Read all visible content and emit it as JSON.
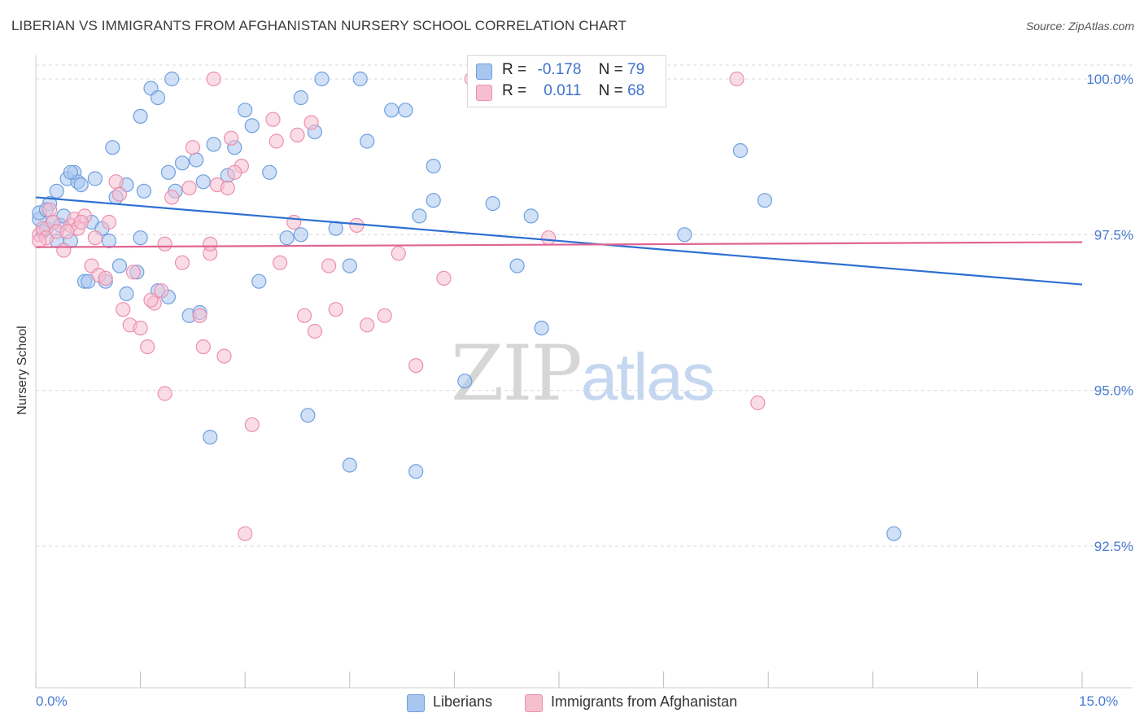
{
  "header": {
    "title": "LIBERIAN VS IMMIGRANTS FROM AFGHANISTAN NURSERY SCHOOL CORRELATION CHART",
    "source": "Source: ZipAtlas.com"
  },
  "legend": {
    "liberians": {
      "r_label": "R =",
      "r_value": "-0.178",
      "n_label": "N =",
      "n_value": "79"
    },
    "afghanistan": {
      "r_label": "R =",
      "r_value": "0.011",
      "n_label": "N =",
      "n_value": "68"
    }
  },
  "bottom_legend": {
    "liberians": "Liberians",
    "afghanistan": "Immigrants from Afghanistan"
  },
  "watermark": {
    "zip": "ZIP",
    "atlas": "atlas"
  },
  "colors": {
    "blue_fill": "#a9c6ef",
    "blue_stroke": "#6f9fe0",
    "blue_line": "#2e6fd0",
    "pink_fill": "#f6bfd0",
    "pink_stroke": "#ec8fae",
    "pink_line": "#e06592",
    "tick_label": "#4a7bd0",
    "grid": "#d9d9d9"
  },
  "chart_data": {
    "type": "scatter",
    "title": "LIBERIAN VS IMMIGRANTS FROM AFGHANISTAN NURSERY SCHOOL CORRELATION CHART",
    "xlabel": "",
    "ylabel": "Nursery School",
    "xlim": [
      0,
      15
    ],
    "ylim": [
      90.5,
      100.3
    ],
    "x_tick_labels": [
      "0.0%",
      "15.0%"
    ],
    "y_ticks": [
      {
        "value": 100.0,
        "label": "100.0%"
      },
      {
        "value": 97.5,
        "label": "97.5%"
      },
      {
        "value": 95.0,
        "label": "95.0%"
      },
      {
        "value": 92.5,
        "label": "92.5%"
      }
    ],
    "grid": "horizontal dashed",
    "series": [
      {
        "name": "Liberians",
        "r": -0.178,
        "n": 79,
        "trend": {
          "x": [
            0,
            15
          ],
          "y": [
            98.1,
            96.7
          ]
        },
        "points": [
          [
            0.05,
            97.75
          ],
          [
            0.1,
            97.55
          ],
          [
            0.15,
            97.6
          ],
          [
            0.2,
            98.0
          ],
          [
            0.25,
            97.7
          ],
          [
            0.3,
            98.2
          ],
          [
            0.35,
            97.65
          ],
          [
            0.4,
            97.8
          ],
          [
            0.45,
            98.4
          ],
          [
            0.5,
            97.4
          ],
          [
            0.55,
            98.5
          ],
          [
            0.6,
            98.35
          ],
          [
            0.7,
            96.75
          ],
          [
            0.75,
            96.75
          ],
          [
            0.8,
            97.7
          ],
          [
            0.85,
            98.4
          ],
          [
            0.95,
            97.6
          ],
          [
            1.05,
            97.4
          ],
          [
            1.15,
            98.1
          ],
          [
            1.3,
            98.3
          ],
          [
            1.45,
            96.9
          ],
          [
            1.55,
            98.2
          ],
          [
            1.65,
            99.85
          ],
          [
            1.75,
            99.7
          ],
          [
            1.9,
            98.5
          ],
          [
            2.0,
            98.2
          ],
          [
            2.1,
            98.65
          ],
          [
            2.2,
            96.2
          ],
          [
            2.35,
            96.25
          ],
          [
            2.55,
            98.95
          ],
          [
            2.75,
            98.45
          ],
          [
            3.1,
            99.25
          ],
          [
            3.2,
            96.75
          ],
          [
            3.6,
            97.45
          ],
          [
            3.8,
            97.5
          ],
          [
            4.0,
            99.15
          ],
          [
            4.3,
            97.6
          ],
          [
            4.5,
            97.0
          ],
          [
            4.75,
            99.0
          ],
          [
            5.1,
            99.5
          ],
          [
            5.5,
            97.8
          ],
          [
            5.7,
            98.6
          ],
          [
            5.7,
            98.05
          ],
          [
            6.15,
            95.15
          ],
          [
            6.55,
            98.0
          ],
          [
            6.9,
            97.0
          ],
          [
            7.1,
            97.8
          ],
          [
            7.25,
            96.0
          ],
          [
            9.3,
            97.5
          ],
          [
            10.1,
            98.85
          ],
          [
            10.45,
            98.05
          ],
          [
            12.3,
            92.7
          ],
          [
            0.5,
            98.5
          ],
          [
            0.65,
            98.3
          ],
          [
            1.2,
            97.0
          ],
          [
            1.5,
            97.45
          ],
          [
            1.9,
            96.5
          ],
          [
            2.3,
            98.7
          ],
          [
            2.85,
            98.9
          ],
          [
            3.35,
            98.5
          ],
          [
            3.9,
            94.6
          ],
          [
            4.5,
            93.8
          ],
          [
            5.45,
            93.7
          ],
          [
            2.5,
            94.25
          ],
          [
            0.05,
            97.85
          ],
          [
            0.15,
            97.9
          ],
          [
            1.0,
            96.75
          ],
          [
            1.3,
            96.55
          ],
          [
            1.75,
            96.6
          ],
          [
            2.4,
            98.35
          ],
          [
            3.0,
            99.5
          ],
          [
            3.8,
            99.7
          ],
          [
            4.1,
            100.0
          ],
          [
            1.95,
            100.0
          ],
          [
            4.65,
            100.0
          ],
          [
            5.3,
            99.5
          ],
          [
            1.5,
            99.4
          ],
          [
            1.1,
            98.9
          ],
          [
            0.3,
            97.4
          ]
        ]
      },
      {
        "name": "Immigrants from Afghanistan",
        "r": 0.011,
        "n": 68,
        "trend": {
          "x": [
            0,
            15
          ],
          "y": [
            97.3,
            97.38
          ]
        },
        "points": [
          [
            0.05,
            97.5
          ],
          [
            0.1,
            97.6
          ],
          [
            0.15,
            97.45
          ],
          [
            0.2,
            97.9
          ],
          [
            0.25,
            97.7
          ],
          [
            0.3,
            97.55
          ],
          [
            0.4,
            97.25
          ],
          [
            0.5,
            97.65
          ],
          [
            0.55,
            97.75
          ],
          [
            0.6,
            97.6
          ],
          [
            0.7,
            97.8
          ],
          [
            0.8,
            97.0
          ],
          [
            0.9,
            96.85
          ],
          [
            1.0,
            96.8
          ],
          [
            1.15,
            98.35
          ],
          [
            1.2,
            98.15
          ],
          [
            1.35,
            96.05
          ],
          [
            1.5,
            96.0
          ],
          [
            1.6,
            95.7
          ],
          [
            1.7,
            96.4
          ],
          [
            1.8,
            96.6
          ],
          [
            1.95,
            98.1
          ],
          [
            2.1,
            97.05
          ],
          [
            2.2,
            98.25
          ],
          [
            2.35,
            96.2
          ],
          [
            2.4,
            95.7
          ],
          [
            2.5,
            97.2
          ],
          [
            2.6,
            98.3
          ],
          [
            2.7,
            95.55
          ],
          [
            2.8,
            99.05
          ],
          [
            2.95,
            98.6
          ],
          [
            3.0,
            92.7
          ],
          [
            3.1,
            94.45
          ],
          [
            3.4,
            99.35
          ],
          [
            3.5,
            97.05
          ],
          [
            3.7,
            97.7
          ],
          [
            3.85,
            96.2
          ],
          [
            4.0,
            95.95
          ],
          [
            4.3,
            96.3
          ],
          [
            4.75,
            96.05
          ],
          [
            5.0,
            96.2
          ],
          [
            5.2,
            97.2
          ],
          [
            5.45,
            95.4
          ],
          [
            5.85,
            96.8
          ],
          [
            7.35,
            97.45
          ],
          [
            10.35,
            94.8
          ],
          [
            0.05,
            97.4
          ],
          [
            0.45,
            97.55
          ],
          [
            0.65,
            97.7
          ],
          [
            0.85,
            97.45
          ],
          [
            1.05,
            97.7
          ],
          [
            1.25,
            96.3
          ],
          [
            1.4,
            96.9
          ],
          [
            1.65,
            96.45
          ],
          [
            1.85,
            97.35
          ],
          [
            2.25,
            98.9
          ],
          [
            2.5,
            97.35
          ],
          [
            2.75,
            98.25
          ],
          [
            2.85,
            98.5
          ],
          [
            3.45,
            99.0
          ],
          [
            3.75,
            99.1
          ],
          [
            3.95,
            99.3
          ],
          [
            4.2,
            97.0
          ],
          [
            4.6,
            97.65
          ],
          [
            1.85,
            94.95
          ],
          [
            2.55,
            100.0
          ],
          [
            6.25,
            100.0
          ],
          [
            10.05,
            100.0
          ]
        ]
      }
    ]
  }
}
